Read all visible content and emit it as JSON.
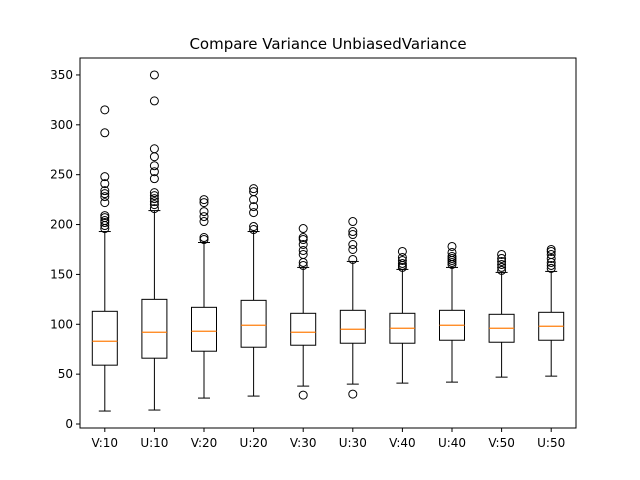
{
  "chart_data": {
    "type": "box",
    "title": "Compare Variance UnbiasedVariance",
    "xlabel": "",
    "ylabel": "",
    "ylim": [
      -4,
      367
    ],
    "yticks": [
      0,
      50,
      100,
      150,
      200,
      250,
      300,
      350
    ],
    "grid": false,
    "colors": {
      "box": "#000000",
      "median": "#ff7f0e",
      "flier": "#000000",
      "background": "#ffffff"
    },
    "categories": [
      "V:10",
      "U:10",
      "V:20",
      "U:20",
      "V:30",
      "U:30",
      "V:40",
      "U:40",
      "V:50",
      "U:50"
    ],
    "boxes": [
      {
        "label": "V:10",
        "whislo": 13,
        "q1": 59,
        "med": 83,
        "q3": 113,
        "whishi": 193,
        "fliers": [
          196,
          199,
          202,
          204,
          207,
          209,
          222,
          228,
          231,
          234,
          241,
          248,
          292,
          315
        ]
      },
      {
        "label": "U:10",
        "whislo": 14,
        "q1": 66,
        "med": 92,
        "q3": 125,
        "whishi": 214,
        "fliers": [
          216,
          220,
          223,
          226,
          229,
          232,
          246,
          253,
          259,
          268,
          276,
          324,
          350
        ]
      },
      {
        "label": "V:20",
        "whislo": 26,
        "q1": 73,
        "med": 93,
        "q3": 117,
        "whishi": 182,
        "fliers": [
          185,
          187,
          203,
          208,
          213,
          222,
          225
        ]
      },
      {
        "label": "U:20",
        "whislo": 28,
        "q1": 77,
        "med": 99,
        "q3": 124,
        "whishi": 193,
        "fliers": [
          195,
          198,
          212,
          218,
          225,
          233,
          236
        ]
      },
      {
        "label": "V:30",
        "whislo": 38,
        "q1": 79,
        "med": 92,
        "q3": 111,
        "whishi": 157,
        "fliers": [
          29,
          159,
          162,
          170,
          174,
          180,
          185,
          187,
          196
        ]
      },
      {
        "label": "U:30",
        "whislo": 40,
        "q1": 81,
        "med": 95,
        "q3": 114,
        "whishi": 163,
        "fliers": [
          30,
          165,
          175,
          180,
          190,
          193,
          203
        ]
      },
      {
        "label": "V:40",
        "whislo": 41,
        "q1": 81,
        "med": 96,
        "q3": 111,
        "whishi": 155,
        "fliers": [
          157,
          159,
          161,
          164,
          167,
          173
        ]
      },
      {
        "label": "U:40",
        "whislo": 42,
        "q1": 84,
        "med": 99,
        "q3": 114,
        "whishi": 157,
        "fliers": [
          160,
          162,
          164,
          166,
          168,
          172,
          178
        ]
      },
      {
        "label": "V:50",
        "whislo": 47,
        "q1": 82,
        "med": 96,
        "q3": 110,
        "whishi": 152,
        "fliers": [
          154,
          157,
          160,
          163,
          166,
          170
        ]
      },
      {
        "label": "U:50",
        "whislo": 48,
        "q1": 84,
        "med": 98,
        "q3": 112,
        "whishi": 153,
        "fliers": [
          156,
          159,
          162,
          166,
          170,
          173,
          175
        ]
      }
    ]
  }
}
